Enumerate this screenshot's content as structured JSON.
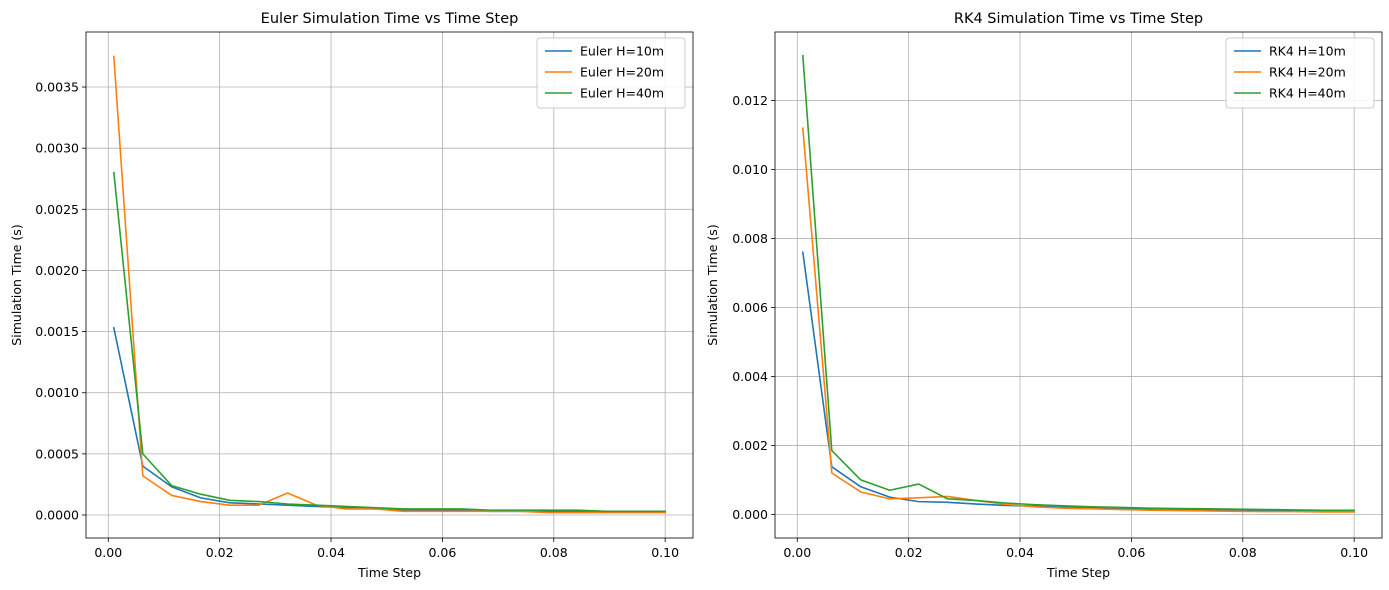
{
  "chart_data": [
    {
      "type": "line",
      "title": "Euler Simulation Time vs Time Step",
      "xlabel": "Time Step",
      "ylabel": "Simulation Time (s)",
      "xlim": [
        -0.004,
        0.105
      ],
      "ylim": [
        -0.000188,
        0.00395
      ],
      "xticks": [
        0.0,
        0.02,
        0.04,
        0.06,
        0.08,
        0.1
      ],
      "xtick_labels": [
        "0.00",
        "0.02",
        "0.04",
        "0.06",
        "0.08",
        "0.10"
      ],
      "yticks": [
        0.0,
        0.0005,
        0.001,
        0.0015,
        0.002,
        0.0025,
        0.003,
        0.0035
      ],
      "ytick_labels": [
        "0.0000",
        "0.0005",
        "0.0010",
        "0.0015",
        "0.0020",
        "0.0025",
        "0.0030",
        "0.0035"
      ],
      "grid": true,
      "legend_position": "top-right",
      "x": [
        0.001,
        0.0062,
        0.0114,
        0.0166,
        0.0218,
        0.027,
        0.0322,
        0.0374,
        0.0426,
        0.0478,
        0.053,
        0.0582,
        0.0634,
        0.0686,
        0.0738,
        0.079,
        0.0842,
        0.0894,
        0.0946,
        0.1
      ],
      "series": [
        {
          "name": "Euler H=10m",
          "color": "#1f77b4",
          "values": [
            0.00153,
            0.0004,
            0.00023,
            0.00014,
            0.0001,
            9e-05,
            8e-05,
            7e-05,
            6e-05,
            5e-05,
            4e-05,
            4e-05,
            4e-05,
            3e-05,
            3e-05,
            3e-05,
            3e-05,
            3e-05,
            3e-05,
            3e-05
          ]
        },
        {
          "name": "Euler H=20m",
          "color": "#ff7f0e",
          "values": [
            0.00375,
            0.00032,
            0.00016,
            0.00011,
            8e-05,
            8e-05,
            0.00018,
            8e-05,
            5e-05,
            5e-05,
            3e-05,
            3e-05,
            3e-05,
            3e-05,
            3e-05,
            2e-05,
            2e-05,
            2e-05,
            2e-05,
            2e-05
          ]
        },
        {
          "name": "Euler H=40m",
          "color": "#2ca02c",
          "values": [
            0.0028,
            0.0005,
            0.00024,
            0.00017,
            0.00012,
            0.00011,
            9e-05,
            8e-05,
            7e-05,
            6e-05,
            5e-05,
            5e-05,
            5e-05,
            4e-05,
            4e-05,
            4e-05,
            4e-05,
            3e-05,
            3e-05,
            3e-05
          ]
        }
      ]
    },
    {
      "type": "line",
      "title": "RK4 Simulation Time vs Time Step",
      "xlabel": "Time Step",
      "ylabel": "Simulation Time (s)",
      "xlim": [
        -0.004,
        0.105
      ],
      "ylim": [
        -0.000685,
        0.01399
      ],
      "xticks": [
        0.0,
        0.02,
        0.04,
        0.06,
        0.08,
        0.1
      ],
      "xtick_labels": [
        "0.00",
        "0.02",
        "0.04",
        "0.06",
        "0.08",
        "0.10"
      ],
      "yticks": [
        0.0,
        0.002,
        0.004,
        0.006,
        0.008,
        0.01,
        0.012
      ],
      "ytick_labels": [
        "0.000",
        "0.002",
        "0.004",
        "0.006",
        "0.008",
        "0.010",
        "0.012"
      ],
      "grid": true,
      "legend_position": "top-right",
      "x": [
        0.001,
        0.0062,
        0.0114,
        0.0166,
        0.0218,
        0.027,
        0.0322,
        0.0374,
        0.0426,
        0.0478,
        0.053,
        0.0582,
        0.0634,
        0.0686,
        0.0738,
        0.079,
        0.0842,
        0.0894,
        0.0946,
        0.1
      ],
      "series": [
        {
          "name": "RK4 H=10m",
          "color": "#1f77b4",
          "values": [
            0.0076,
            0.00138,
            0.0008,
            0.0005,
            0.00037,
            0.00035,
            0.0003,
            0.00026,
            0.00024,
            0.00021,
            0.00019,
            0.00017,
            0.00016,
            0.00015,
            0.00013,
            0.00012,
            0.00011,
            0.0001,
            0.0001,
            9e-05
          ]
        },
        {
          "name": "RK4 H=20m",
          "color": "#ff7f0e",
          "values": [
            0.0112,
            0.0012,
            0.00065,
            0.00045,
            0.00048,
            0.00052,
            0.0004,
            0.00029,
            0.00022,
            0.00018,
            0.00016,
            0.00014,
            0.00012,
            0.00011,
            0.0001,
            9e-05,
            8e-05,
            8e-05,
            7e-05,
            7e-05
          ]
        },
        {
          "name": "RK4 H=40m",
          "color": "#2ca02c",
          "values": [
            0.0133,
            0.00185,
            0.001,
            0.0007,
            0.00088,
            0.00045,
            0.0004,
            0.00033,
            0.00028,
            0.00025,
            0.00022,
            0.0002,
            0.00018,
            0.00017,
            0.00016,
            0.00015,
            0.00014,
            0.00013,
            0.00012,
            0.00012
          ]
        }
      ]
    }
  ]
}
